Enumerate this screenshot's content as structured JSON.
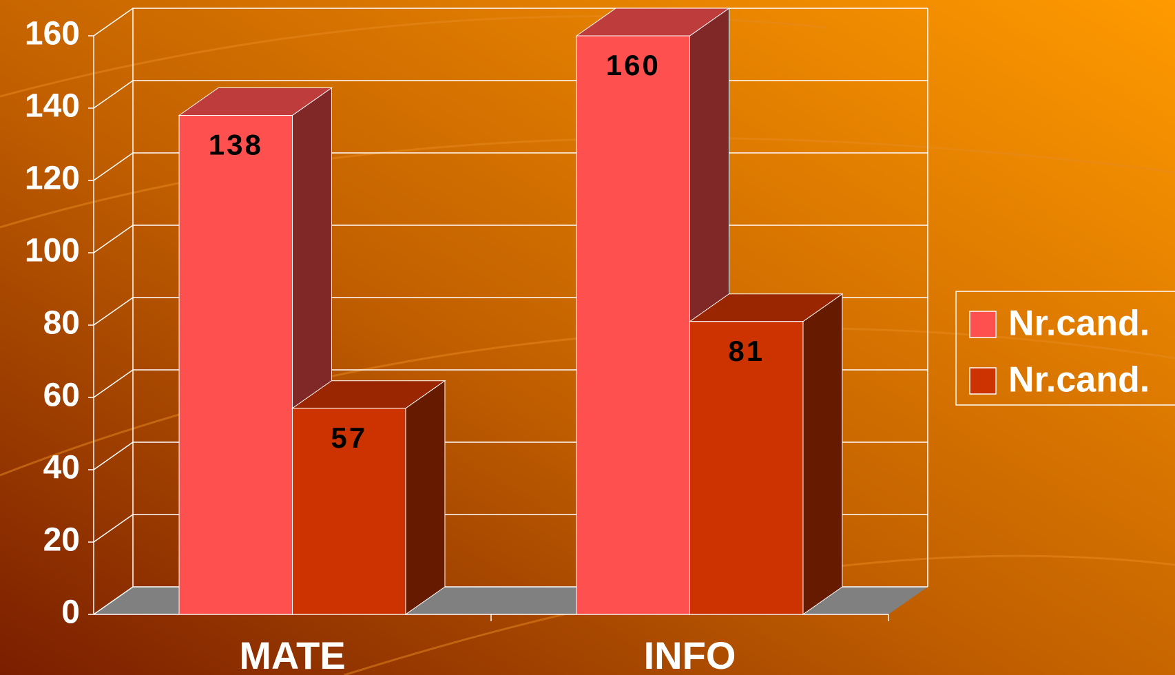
{
  "chart_data": {
    "type": "bar3d",
    "categories": [
      "MATE",
      "INFO"
    ],
    "series": [
      {
        "name": "Nr.cand.",
        "color": "#ff5050",
        "values": [
          138,
          160
        ]
      },
      {
        "name": "Nr.cand.",
        "color": "#cc3300",
        "values": [
          57,
          81
        ]
      }
    ],
    "ylim": [
      0,
      160
    ],
    "yticks": [
      0,
      20,
      40,
      60,
      80,
      100,
      120,
      140,
      160
    ],
    "grid": true,
    "legend": "right",
    "data_labels": true
  }
}
